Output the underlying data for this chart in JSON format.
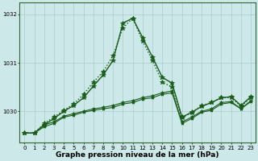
{
  "title": "Graphe pression niveau de la mer (hPa)",
  "bg_color": "#cce8e8",
  "grid_color": "#aacccc",
  "line_color": "#1a5c1a",
  "xlim": [
    -0.5,
    23.5
  ],
  "ylim": [
    1029.35,
    1032.25
  ],
  "yticks": [
    1030,
    1031,
    1032
  ],
  "xticks": [
    0,
    1,
    2,
    3,
    4,
    5,
    6,
    7,
    8,
    9,
    10,
    11,
    12,
    13,
    14,
    15,
    16,
    17,
    18,
    19,
    20,
    21,
    22,
    23
  ],
  "series": [
    {
      "x": [
        0,
        1,
        2,
        3,
        4,
        5,
        6,
        7,
        8,
        9,
        10,
        11,
        12,
        13,
        14,
        15,
        16,
        17,
        18,
        19,
        20,
        21,
        22,
        23
      ],
      "y": [
        1029.55,
        1029.55,
        1029.75,
        1029.88,
        1030.02,
        1030.15,
        1030.35,
        1030.6,
        1030.82,
        1031.15,
        1031.72,
        1031.92,
        1031.45,
        1031.05,
        1030.6,
        1030.5,
        1029.87,
        1029.97,
        1030.12,
        1030.18,
        1030.28,
        1030.28,
        1030.1,
        1030.28
      ],
      "style": "dotted",
      "marker": "*",
      "markersize": 4,
      "linewidth": 1.0
    },
    {
      "x": [
        0,
        1,
        2,
        3,
        4,
        5,
        6,
        7,
        8,
        9,
        10,
        11,
        12,
        13,
        14,
        15,
        16,
        17,
        18,
        19,
        20,
        21,
        22,
        23
      ],
      "y": [
        1029.55,
        1029.55,
        1029.72,
        1029.85,
        1030.0,
        1030.12,
        1030.28,
        1030.52,
        1030.75,
        1031.05,
        1031.82,
        1031.92,
        1031.52,
        1031.12,
        1030.7,
        1030.58,
        1029.88,
        1029.98,
        1030.1,
        1030.18,
        1030.28,
        1030.3,
        1030.12,
        1030.3
      ],
      "style": "solid",
      "marker": "*",
      "markersize": 4,
      "linewidth": 1.0
    },
    {
      "x": [
        0,
        1,
        2,
        3,
        4,
        5,
        6,
        7,
        8,
        9,
        10,
        11,
        12,
        13,
        14,
        15,
        16,
        17,
        18,
        19,
        20,
        21,
        22,
        23
      ],
      "y": [
        1029.55,
        1029.55,
        1029.72,
        1029.78,
        1029.9,
        1029.95,
        1030.0,
        1030.05,
        1030.08,
        1030.12,
        1030.18,
        1030.22,
        1030.28,
        1030.32,
        1030.38,
        1030.42,
        1029.78,
        1029.88,
        1030.0,
        1030.05,
        1030.18,
        1030.2,
        1030.05,
        1030.22
      ],
      "style": "solid",
      "marker": "*",
      "markersize": 3,
      "linewidth": 0.8
    },
    {
      "x": [
        0,
        1,
        2,
        3,
        4,
        5,
        6,
        7,
        8,
        9,
        10,
        11,
        12,
        13,
        14,
        15,
        16,
        17,
        18,
        19,
        20,
        21,
        22,
        23
      ],
      "y": [
        1029.55,
        1029.55,
        1029.68,
        1029.75,
        1029.88,
        1029.92,
        1029.98,
        1030.02,
        1030.05,
        1030.08,
        1030.15,
        1030.18,
        1030.25,
        1030.28,
        1030.35,
        1030.38,
        1029.75,
        1029.85,
        1029.98,
        1030.02,
        1030.15,
        1030.18,
        1030.05,
        1030.2
      ],
      "style": "solid",
      "marker": "*",
      "markersize": 3,
      "linewidth": 0.8
    }
  ],
  "label_fontsize": 6.5,
  "tick_fontsize": 5.0
}
